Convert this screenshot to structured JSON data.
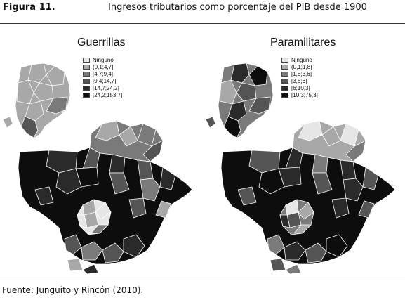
{
  "header": {
    "figure_label": "Figura 11.",
    "caption": "Ingresos tributarios como porcentaje del PIB desde 1900"
  },
  "maps": [
    {
      "title": "Guerrillas",
      "legend": [
        {
          "label": "Ninguno",
          "color": "#e6e6e6"
        },
        {
          "label": "(0,1;4,7]",
          "color": "#a8a8a8"
        },
        {
          "label": "[4,7;9,4]",
          "color": "#7a7a7a"
        },
        {
          "label": "[9,4;14,7]",
          "color": "#555555"
        },
        {
          "label": "[14,7;24,2]",
          "color": "#2a2a2a"
        },
        {
          "label": "[24,2;153,7]",
          "color": "#0d0d0d"
        }
      ]
    },
    {
      "title": "Paramilitares",
      "legend": [
        {
          "label": "Ninguno",
          "color": "#e6e6e6"
        },
        {
          "label": "(0,1;1,8]",
          "color": "#a8a8a8"
        },
        {
          "label": "[1,8;3,6]",
          "color": "#7a7a7a"
        },
        {
          "label": "[3,6;6]",
          "color": "#555555"
        },
        {
          "label": "[6;10,3]",
          "color": "#2a2a2a"
        },
        {
          "label": "[10,3;75,3]",
          "color": "#0d0d0d"
        }
      ]
    }
  ],
  "footer": {
    "source": "Fuente: Junguito y Rincón (2010)."
  }
}
